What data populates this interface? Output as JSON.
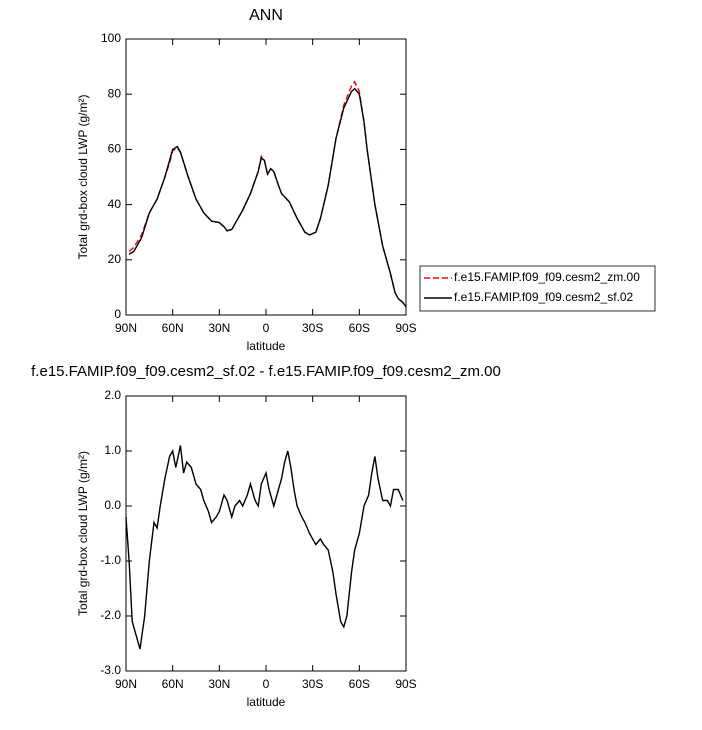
{
  "chart_data": [
    {
      "type": "line",
      "title": "ANN",
      "xlabel": "latitude",
      "ylabel": "Total grd-box cloud LWP (g/m²)",
      "xlim": [
        90,
        -90
      ],
      "xticks": [
        {
          "value": 90,
          "label": "90N"
        },
        {
          "value": 60,
          "label": "60N"
        },
        {
          "value": 30,
          "label": "30N"
        },
        0,
        {
          "value": -30,
          "label": "30S"
        },
        {
          "value": -60,
          "label": "60S"
        },
        {
          "value": -90,
          "label": "90S"
        }
      ],
      "ylim": [
        0,
        100
      ],
      "yticks": [
        0,
        20,
        40,
        60,
        80,
        100
      ],
      "x": [
        88,
        85,
        80,
        75,
        70,
        65,
        62,
        60,
        57,
        55,
        50,
        45,
        40,
        35,
        30,
        27,
        25,
        22,
        20,
        15,
        10,
        5,
        3,
        1,
        -1,
        -3,
        -5,
        -8,
        -10,
        -15,
        -20,
        -25,
        -28,
        -32,
        -35,
        -40,
        -45,
        -50,
        -55,
        -57,
        -60,
        -63,
        -65,
        -70,
        -75,
        -80,
        -83,
        -85,
        -88,
        -90
      ],
      "series": [
        {
          "name": "f.e15.FAMIP.f09_f09.cesm2_zm.00",
          "color": "#ff0000",
          "style": "dashed",
          "values": [
            23,
            24.5,
            29,
            37,
            42,
            50,
            55,
            59.5,
            60.5,
            59,
            50,
            42,
            37,
            34,
            33.5,
            32,
            30.5,
            31,
            33,
            38,
            44,
            52,
            57.5,
            56,
            51,
            53,
            52,
            47,
            44,
            41,
            35,
            30,
            29,
            30,
            35,
            47,
            64,
            76,
            83,
            84.5,
            81,
            70,
            60,
            40,
            25,
            15,
            8,
            6,
            4.5,
            3
          ]
        },
        {
          "name": "f.e15.FAMIP.f09_f09.cesm2_sf.02",
          "color": "#000000",
          "style": "solid",
          "values": [
            22,
            23,
            28,
            37,
            42,
            50,
            56,
            60,
            61,
            59,
            50,
            42,
            37,
            34,
            33.5,
            32,
            30.5,
            31,
            33,
            38,
            44,
            52,
            57,
            56,
            51,
            53,
            52,
            47,
            44,
            41,
            35,
            30,
            29,
            30,
            35,
            47,
            64,
            75,
            81,
            82,
            80,
            70,
            60,
            40,
            25,
            15,
            8,
            6,
            4.5,
            3
          ]
        }
      ]
    },
    {
      "type": "line",
      "title": "f.e15.FAMIP.f09_f09.cesm2_sf.02 - f.e15.FAMIP.f09_f09.cesm2_zm.00",
      "xlabel": "latitude",
      "ylabel": "Total grd-box cloud LWP (g/m²)",
      "xlim": [
        90,
        -90
      ],
      "xticks": [
        {
          "value": 90,
          "label": "90N"
        },
        {
          "value": 60,
          "label": "60N"
        },
        {
          "value": 30,
          "label": "30N"
        },
        0,
        {
          "value": -30,
          "label": "30S"
        },
        {
          "value": -60,
          "label": "60S"
        },
        {
          "value": -90,
          "label": "90S"
        }
      ],
      "ylim": [
        -3,
        2
      ],
      "yticks": [
        {
          "value": -3,
          "label": "-3.0"
        },
        {
          "value": -2,
          "label": "-2.0"
        },
        {
          "value": -1,
          "label": "-1.0"
        },
        {
          "value": 0,
          "label": "0.0"
        },
        {
          "value": 1,
          "label": "1.0"
        },
        {
          "value": 2,
          "label": "2.0"
        }
      ],
      "x": [
        90,
        88,
        86,
        83,
        81,
        78,
        75,
        72,
        70,
        68,
        65,
        62,
        60,
        58,
        55,
        53,
        51,
        48,
        45,
        42,
        40,
        37,
        35,
        32,
        30,
        27,
        25,
        22,
        20,
        17,
        15,
        12,
        10,
        7,
        5,
        3,
        0,
        -2,
        -5,
        -7,
        -10,
        -12,
        -14,
        -16,
        -18,
        -20,
        -23,
        -25,
        -28,
        -30,
        -32,
        -35,
        -37,
        -40,
        -43,
        -45,
        -48,
        -50,
        -52,
        -55,
        -57,
        -60,
        -63,
        -66,
        -68,
        -70,
        -72,
        -75,
        -78,
        -80,
        -82,
        -85,
        -88
      ],
      "series": [
        {
          "color": "#000000",
          "style": "solid",
          "values": [
            -0.2,
            -1.0,
            -2.1,
            -2.4,
            -2.6,
            -2.0,
            -1.0,
            -0.3,
            -0.4,
            0.0,
            0.5,
            0.9,
            1.0,
            0.7,
            1.1,
            0.6,
            0.8,
            0.7,
            0.4,
            0.3,
            0.1,
            -0.1,
            -0.3,
            -0.2,
            -0.1,
            0.2,
            0.1,
            -0.2,
            0.0,
            0.1,
            0.0,
            0.2,
            0.4,
            0.1,
            0.0,
            0.4,
            0.6,
            0.3,
            0.0,
            0.2,
            0.5,
            0.8,
            1.0,
            0.7,
            0.3,
            0.0,
            -0.2,
            -0.3,
            -0.5,
            -0.6,
            -0.7,
            -0.6,
            -0.7,
            -0.8,
            -1.2,
            -1.6,
            -2.1,
            -2.2,
            -2.0,
            -1.2,
            -0.8,
            -0.5,
            0.0,
            0.2,
            0.6,
            0.9,
            0.5,
            0.1,
            0.1,
            0.0,
            0.3,
            0.3,
            0.1
          ]
        }
      ]
    }
  ]
}
